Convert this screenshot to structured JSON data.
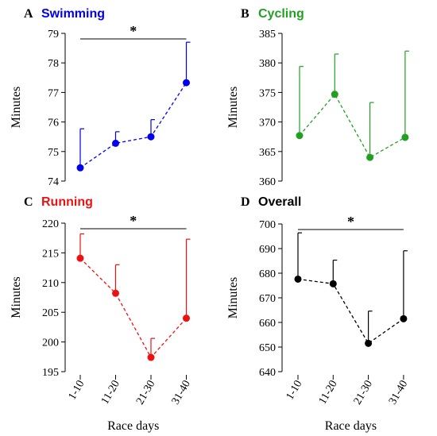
{
  "chart_data": [
    {
      "type": "line",
      "panel_letter": "A",
      "title": "Swimming",
      "color": "#0000ee",
      "ylabel": "Minutes",
      "xlabel": "",
      "categories": [
        "1-10",
        "11-20",
        "21-30",
        "31-40"
      ],
      "values": [
        74.45,
        75.28,
        75.5,
        77.33
      ],
      "error_upper": [
        75.77,
        75.67,
        76.08,
        78.7
      ],
      "ylim": [
        74,
        79
      ],
      "yticks": [
        "74",
        "75",
        "76",
        "77",
        "78",
        "79"
      ],
      "significance": {
        "label": "*",
        "from": "1-10",
        "to": "31-40"
      },
      "grid": false,
      "show_xticklabels": false
    },
    {
      "type": "line",
      "panel_letter": "B",
      "title": "Cycling",
      "color": "#22a022",
      "ylabel": "Minutes",
      "xlabel": "",
      "categories": [
        "1-10",
        "11-20",
        "21-30",
        "31-40"
      ],
      "values": [
        367.7,
        374.7,
        364.0,
        367.4
      ],
      "error_upper": [
        379.4,
        381.5,
        373.3,
        382.0
      ],
      "ylim": [
        360,
        385
      ],
      "yticks": [
        "360",
        "365",
        "370",
        "375",
        "380",
        "385"
      ],
      "grid": false,
      "show_xticklabels": false
    },
    {
      "type": "line",
      "panel_letter": "C",
      "title": "Running",
      "color": "#ee1111",
      "ylabel": "Minutes",
      "xlabel": "Race days",
      "categories": [
        "1-10",
        "11-20",
        "21-30",
        "31-40"
      ],
      "values": [
        214.1,
        208.2,
        197.4,
        204.0
      ],
      "error_upper": [
        218.2,
        213.0,
        200.6,
        217.3
      ],
      "ylim": [
        195,
        220
      ],
      "yticks": [
        "195",
        "200",
        "205",
        "210",
        "215",
        "220"
      ],
      "significance": {
        "label": "*",
        "from": "1-10",
        "to": "31-40"
      },
      "grid": false,
      "show_xticklabels": true
    },
    {
      "type": "line",
      "panel_letter": "D",
      "title": "Overall",
      "color": "#000000",
      "ylabel": "Minutes",
      "xlabel": "Race days",
      "categories": [
        "1-10",
        "11-20",
        "21-30",
        "31-40"
      ],
      "values": [
        677.6,
        675.7,
        651.5,
        661.5
      ],
      "error_upper": [
        696.4,
        685.3,
        664.6,
        689.1
      ],
      "ylim": [
        640,
        700
      ],
      "yticks": [
        "640",
        "650",
        "660",
        "670",
        "680",
        "690",
        "700"
      ],
      "significance": {
        "label": "*",
        "from": "1-10",
        "to": "31-40"
      },
      "grid": false,
      "show_xticklabels": true
    }
  ]
}
